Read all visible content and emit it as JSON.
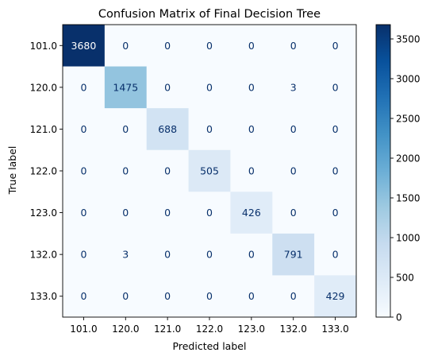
{
  "chart_data": {
    "type": "heatmap",
    "title": "Confusion Matrix of Final Decision Tree",
    "xlabel": "Predicted label",
    "ylabel": "True label",
    "x_categories": [
      "101.0",
      "120.0",
      "121.0",
      "122.0",
      "123.0",
      "132.0",
      "133.0"
    ],
    "y_categories": [
      "101.0",
      "120.0",
      "121.0",
      "122.0",
      "123.0",
      "132.0",
      "133.0"
    ],
    "values": [
      [
        3680,
        0,
        0,
        0,
        0,
        0,
        0
      ],
      [
        0,
        1475,
        0,
        0,
        0,
        3,
        0
      ],
      [
        0,
        0,
        688,
        0,
        0,
        0,
        0
      ],
      [
        0,
        0,
        0,
        505,
        0,
        0,
        0
      ],
      [
        0,
        0,
        0,
        0,
        426,
        0,
        0
      ],
      [
        0,
        3,
        0,
        0,
        0,
        791,
        0
      ],
      [
        0,
        0,
        0,
        0,
        0,
        0,
        429
      ]
    ],
    "colormap": "Blues",
    "vmin": 0,
    "vmax": 3680,
    "colorbar_ticks": [
      0,
      500,
      1000,
      1500,
      2000,
      2500,
      3000,
      3500
    ]
  }
}
